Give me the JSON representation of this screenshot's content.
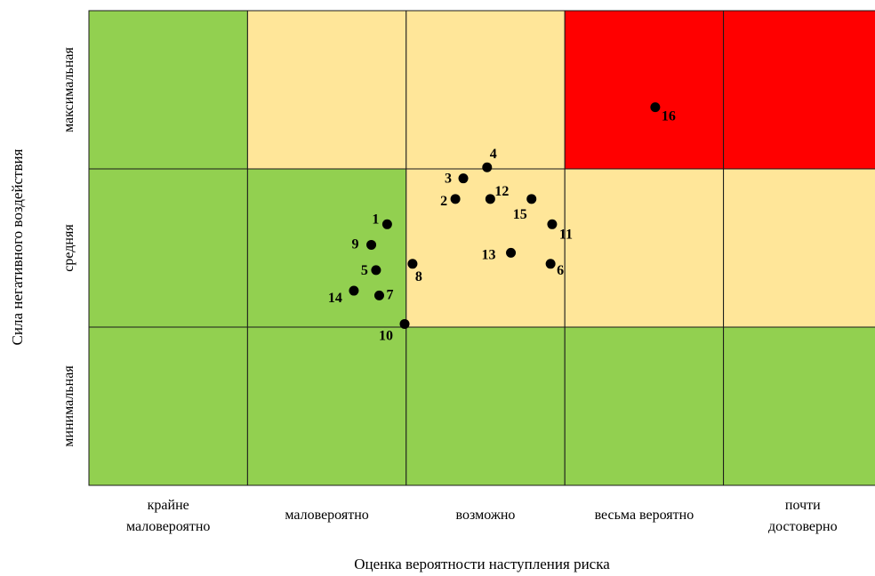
{
  "chart_data": {
    "type": "scatter",
    "title": "",
    "xlabel": "Оценка вероятности наступления риска",
    "ylabel": "Сила негативного воздействия",
    "x_categories": [
      [
        "крайне",
        "маловероятно"
      ],
      [
        "маловероятно"
      ],
      [
        "возможно"
      ],
      [
        "весьма вероятно"
      ],
      [
        "почти",
        "достоверно"
      ]
    ],
    "y_categories": [
      "минимальная",
      "средняя",
      "максимальная"
    ],
    "xlim": [
      0,
      5
    ],
    "ylim": [
      0,
      3
    ],
    "grid": true,
    "legend": "none",
    "cell_levels": [
      [
        "low",
        "low",
        "low",
        "low",
        "low"
      ],
      [
        "low",
        "low",
        "medium",
        "medium",
        "medium"
      ],
      [
        "low",
        "medium",
        "medium",
        "high",
        "high"
      ]
    ],
    "level_colors": {
      "low": "#92d050",
      "medium": "#ffe699",
      "high": "#ff0000"
    },
    "point_color": "#000000",
    "points": [
      {
        "label": "1",
        "x": 1.88,
        "y": 1.65
      },
      {
        "label": "2",
        "x": 2.31,
        "y": 1.81
      },
      {
        "label": "3",
        "x": 2.36,
        "y": 1.94
      },
      {
        "label": "4",
        "x": 2.51,
        "y": 2.01
      },
      {
        "label": "5",
        "x": 1.81,
        "y": 1.36
      },
      {
        "label": "6",
        "x": 2.91,
        "y": 1.4
      },
      {
        "label": "7",
        "x": 1.83,
        "y": 1.2
      },
      {
        "label": "8",
        "x": 2.04,
        "y": 1.4
      },
      {
        "label": "9",
        "x": 1.78,
        "y": 1.52
      },
      {
        "label": "10",
        "x": 1.99,
        "y": 1.02
      },
      {
        "label": "11",
        "x": 2.92,
        "y": 1.65
      },
      {
        "label": "12",
        "x": 2.53,
        "y": 1.81
      },
      {
        "label": "13",
        "x": 2.66,
        "y": 1.47
      },
      {
        "label": "14",
        "x": 1.67,
        "y": 1.23
      },
      {
        "label": "15",
        "x": 2.79,
        "y": 1.81
      },
      {
        "label": "16",
        "x": 3.57,
        "y": 2.39
      }
    ]
  }
}
